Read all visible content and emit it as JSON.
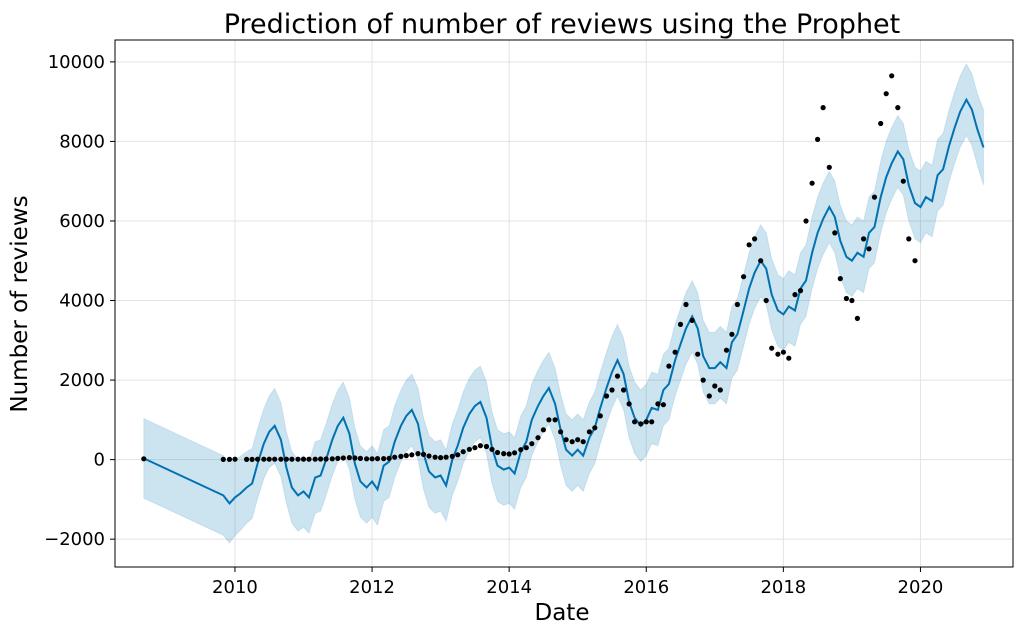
{
  "chart_data": {
    "type": "line",
    "title": "Prediction of number of reviews using the Prophet",
    "xlabel": "Date",
    "ylabel": "Number of reviews",
    "xlim": [
      2008.25,
      2021.35
    ],
    "ylim": [
      -2700,
      10550
    ],
    "x_ticks": [
      2010,
      2012,
      2014,
      2016,
      2018,
      2020
    ],
    "x_tick_labels": [
      "2010",
      "2012",
      "2014",
      "2016",
      "2018",
      "2020"
    ],
    "y_ticks": [
      -2000,
      0,
      2000,
      4000,
      6000,
      8000,
      10000
    ],
    "y_tick_labels": [
      "−2000",
      "0",
      "2000",
      "4000",
      "6000",
      "8000",
      "10000"
    ],
    "grid": true,
    "colors": {
      "forecast_line": "#0072B2",
      "uncertainty_band": "#0072B2",
      "observed_points": "#000000"
    },
    "series": [
      {
        "kind": "forecast_band",
        "x": [
          2008.67,
          2009.83,
          2009.92,
          2010.0,
          2010.08,
          2010.17,
          2010.25,
          2010.33,
          2010.42,
          2010.5,
          2010.58,
          2010.67,
          2010.75,
          2010.83,
          2010.92,
          2011.0,
          2011.08,
          2011.17,
          2011.25,
          2011.33,
          2011.42,
          2011.5,
          2011.58,
          2011.67,
          2011.75,
          2011.83,
          2011.92,
          2012.0,
          2012.08,
          2012.17,
          2012.25,
          2012.33,
          2012.42,
          2012.5,
          2012.58,
          2012.67,
          2012.75,
          2012.83,
          2012.92,
          2013.0,
          2013.08,
          2013.17,
          2013.25,
          2013.33,
          2013.42,
          2013.5,
          2013.58,
          2013.67,
          2013.75,
          2013.83,
          2013.92,
          2014.0,
          2014.08,
          2014.17,
          2014.25,
          2014.33,
          2014.42,
          2014.5,
          2014.58,
          2014.67,
          2014.75,
          2014.83,
          2014.92,
          2015.0,
          2015.08,
          2015.17,
          2015.25,
          2015.33,
          2015.42,
          2015.5,
          2015.58,
          2015.67,
          2015.75,
          2015.83,
          2015.92,
          2016.0,
          2016.08,
          2016.17,
          2016.25,
          2016.33,
          2016.42,
          2016.5,
          2016.58,
          2016.67,
          2016.75,
          2016.83,
          2016.92,
          2017.0,
          2017.08,
          2017.17,
          2017.25,
          2017.33,
          2017.42,
          2017.5,
          2017.58,
          2017.67,
          2017.75,
          2017.83,
          2017.92,
          2018.0,
          2018.08,
          2018.17,
          2018.25,
          2018.33,
          2018.42,
          2018.5,
          2018.58,
          2018.67,
          2018.75,
          2018.83,
          2018.92,
          2019.0,
          2019.08,
          2019.17,
          2019.25,
          2019.33,
          2019.42,
          2019.5,
          2019.58,
          2019.67,
          2019.75,
          2019.83,
          2019.92,
          2020.0,
          2020.08,
          2020.17,
          2020.25,
          2020.33,
          2020.42,
          2020.5,
          2020.58,
          2020.67,
          2020.75,
          2020.83,
          2020.92
        ],
        "yhat": [
          30,
          -900,
          -1100,
          -950,
          -850,
          -700,
          -600,
          -100,
          400,
          700,
          850,
          500,
          -200,
          -700,
          -900,
          -800,
          -950,
          -450,
          -400,
          0,
          500,
          850,
          1050,
          650,
          -100,
          -550,
          -700,
          -550,
          -750,
          -150,
          -50,
          450,
          850,
          1100,
          1250,
          900,
          150,
          -300,
          -450,
          -400,
          -650,
          0,
          350,
          800,
          1150,
          1350,
          1450,
          1050,
          300,
          -150,
          -250,
          -200,
          -350,
          200,
          450,
          1000,
          1350,
          1600,
          1800,
          1400,
          750,
          250,
          100,
          250,
          100,
          550,
          800,
          1300,
          1800,
          2200,
          2500,
          2150,
          1450,
          1050,
          850,
          1000,
          1300,
          1250,
          1750,
          1900,
          2500,
          2900,
          3300,
          3600,
          3300,
          2600,
          2300,
          2300,
          2450,
          2300,
          2950,
          3150,
          3750,
          4300,
          4700,
          5000,
          4800,
          4150,
          3750,
          3650,
          3850,
          3750,
          4300,
          4500,
          5200,
          5700,
          6050,
          6350,
          6100,
          5500,
          5100,
          5000,
          5200,
          5100,
          5700,
          5850,
          6600,
          7100,
          7450,
          7750,
          7550,
          6900,
          6450,
          6350,
          6600,
          6500,
          7150,
          7300,
          7900,
          8350,
          8750,
          9050,
          8800,
          8300,
          7850,
          7750
        ],
        "band_half_width": [
          1000,
          1000,
          1000,
          960,
          930,
          900,
          880,
          880,
          880,
          900,
          940,
          930,
          900,
          900,
          900,
          900,
          900,
          900,
          900,
          900,
          900,
          900,
          900,
          900,
          900,
          900,
          900,
          900,
          900,
          900,
          900,
          900,
          900,
          900,
          900,
          900,
          900,
          900,
          900,
          900,
          900,
          900,
          900,
          900,
          900,
          900,
          900,
          900,
          900,
          900,
          900,
          900,
          900,
          900,
          900,
          900,
          900,
          900,
          900,
          900,
          900,
          900,
          900,
          900,
          900,
          900,
          900,
          900,
          900,
          900,
          900,
          900,
          900,
          900,
          900,
          900,
          900,
          900,
          900,
          900,
          900,
          900,
          900,
          900,
          900,
          900,
          900,
          900,
          900,
          900,
          900,
          900,
          900,
          900,
          900,
          900,
          900,
          900,
          900,
          900,
          900,
          900,
          900,
          900,
          900,
          900,
          900,
          900,
          900,
          900,
          900,
          900,
          900,
          900,
          900,
          900,
          900,
          900,
          900,
          900,
          900,
          900,
          900,
          900,
          900,
          900,
          900,
          900,
          900,
          900,
          900,
          900,
          900,
          900,
          950
        ]
      },
      {
        "kind": "observed_points",
        "x": [
          2008.67,
          2009.83,
          2009.92,
          2010.0,
          2010.17,
          2010.25,
          2010.33,
          2010.42,
          2010.5,
          2010.58,
          2010.67,
          2010.75,
          2010.83,
          2010.92,
          2011.0,
          2011.08,
          2011.17,
          2011.25,
          2011.33,
          2011.42,
          2011.5,
          2011.58,
          2011.67,
          2011.75,
          2011.83,
          2011.92,
          2012.0,
          2012.08,
          2012.17,
          2012.25,
          2012.33,
          2012.42,
          2012.5,
          2012.58,
          2012.67,
          2012.75,
          2012.83,
          2012.92,
          2013.0,
          2013.08,
          2013.17,
          2013.25,
          2013.33,
          2013.42,
          2013.5,
          2013.58,
          2013.67,
          2013.75,
          2013.83,
          2013.92,
          2014.0,
          2014.08,
          2014.17,
          2014.25,
          2014.33,
          2014.42,
          2014.5,
          2014.58,
          2014.67,
          2014.75,
          2014.83,
          2014.92,
          2015.0,
          2015.08,
          2015.17,
          2015.25,
          2015.33,
          2015.42,
          2015.5,
          2015.58,
          2015.67,
          2015.75,
          2015.83,
          2015.92,
          2016.0,
          2016.08,
          2016.17,
          2016.25,
          2016.33,
          2016.42,
          2016.5,
          2016.58,
          2016.67,
          2016.75,
          2016.83,
          2016.92,
          2017.0,
          2017.08,
          2017.17,
          2017.25,
          2017.33,
          2017.42,
          2017.5,
          2017.58,
          2017.67,
          2017.75,
          2017.83,
          2017.92,
          2018.0,
          2018.08,
          2018.17,
          2018.25,
          2018.33,
          2018.42,
          2018.5,
          2018.58,
          2018.67,
          2018.75,
          2018.83,
          2018.92,
          2019.0,
          2019.08,
          2019.17,
          2019.25,
          2019.33,
          2019.42,
          2019.5,
          2019.58,
          2019.67,
          2019.75,
          2019.83,
          2019.92
        ],
        "y": [
          20,
          5,
          5,
          10,
          5,
          5,
          10,
          10,
          10,
          10,
          10,
          10,
          10,
          10,
          10,
          10,
          10,
          15,
          15,
          20,
          30,
          40,
          50,
          40,
          30,
          20,
          20,
          25,
          25,
          30,
          60,
          80,
          100,
          120,
          150,
          130,
          90,
          60,
          50,
          60,
          80,
          120,
          200,
          260,
          300,
          350,
          330,
          260,
          180,
          150,
          140,
          170,
          250,
          300,
          400,
          550,
          750,
          1000,
          1000,
          700,
          500,
          450,
          500,
          450,
          700,
          800,
          1100,
          1600,
          1750,
          2100,
          1750,
          1400,
          950,
          900,
          950,
          950,
          1400,
          1380,
          2350,
          2700,
          3400,
          3900,
          3500,
          2650,
          2000,
          1600,
          1850,
          1750,
          2750,
          3150,
          3900,
          4600,
          5400,
          5550,
          5000,
          4000,
          2800,
          2650,
          2700,
          2550,
          4150,
          4250,
          6000,
          6950,
          8050,
          8850,
          7350,
          5700,
          4550,
          4050,
          4000,
          3550,
          5550,
          5300,
          6600,
          8450,
          9200,
          9650,
          8850,
          7000,
          5550,
          5000
        ]
      }
    ]
  }
}
